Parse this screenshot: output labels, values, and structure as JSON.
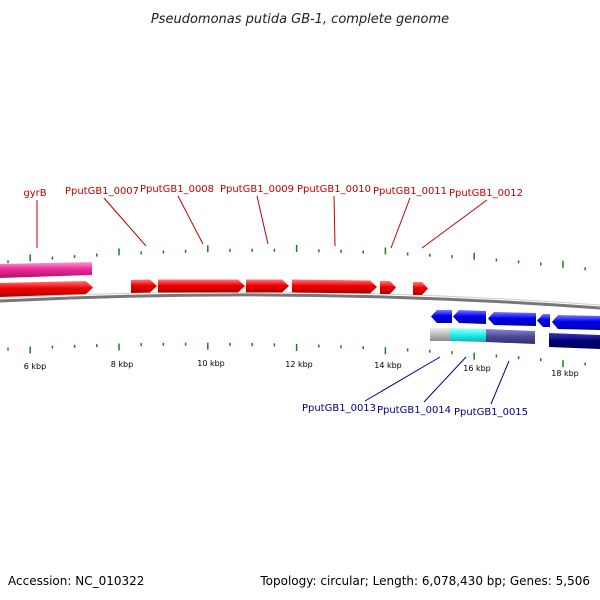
{
  "title": "Pseudomonas putida GB-1, complete genome",
  "footer": {
    "accession": "Accession: NC_010322",
    "summary": "Topology: circular; Length: 6,078,430 bp; Genes: 5,506"
  },
  "colors": {
    "forward_gene": "#ee0000",
    "forward_gene_pink": "#ee2a9a",
    "reverse_gene": "#0000ee",
    "reverse_gene_dark": "#00007a",
    "reverse_gene_cyan": "#22eeee",
    "reverse_gene_slate": "#4a4a9a",
    "reverse_gene_gray": "#bbbbbb",
    "tick": "#1a7f1a",
    "label_red": "#c00000",
    "label_blue": "#00008b",
    "backbone": "#777777"
  },
  "tick_labels": [
    "6 kbp",
    "8 kbp",
    "10 kbp",
    "12 kbp",
    "14 kbp",
    "16 kbp",
    "18 kbp"
  ],
  "forward_labels": [
    "gyrB",
    "PputGB1_0007",
    "PputGB1_0008",
    "PputGB1_0009",
    "PputGB1_0010",
    "PputGB1_0011",
    "PputGB1_0012"
  ],
  "reverse_labels": [
    "PputGB1_0013",
    "PputGB1_0014",
    "PputGB1_0015"
  ]
}
